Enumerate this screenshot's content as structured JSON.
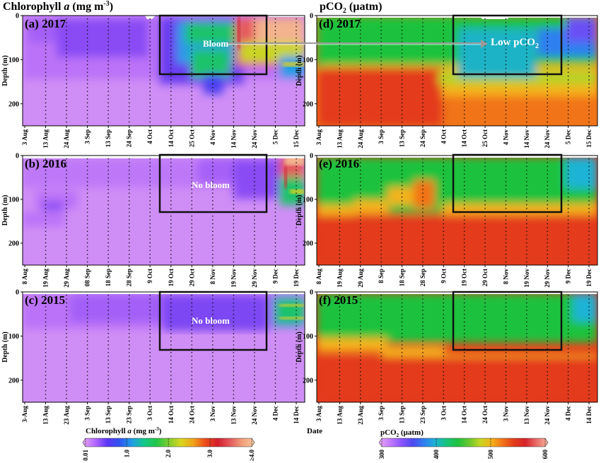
{
  "header": {
    "left_title": "Chlorophyll a (mg m-3)",
    "left_title_main": "Chlorophyll ",
    "left_title_italic": "a",
    "left_title_unit": " (mg m",
    "left_title_sup": "-3",
    "left_title_close": ")",
    "right_title_main": "pCO",
    "right_title_sub": "2",
    "right_title_unit": " (µatm)"
  },
  "axis": {
    "ylabel": "Depth (m)",
    "xlabel": "Date",
    "yticks": [
      "0",
      "100",
      "200"
    ]
  },
  "panels": [
    {
      "id": "a",
      "label": "(a) 2017",
      "variable": "chlorophyll",
      "year": 2017,
      "xticks": [
        "3 Aug",
        "13 Aug",
        "24 Aug",
        "3 Sep",
        "13 Sep",
        "24 Sep",
        "4 Oct",
        "14 Oct",
        "25 Oct",
        "4 Nov",
        "14 Nov",
        "24 Nov",
        "5 Dec",
        "15 Dec"
      ],
      "box_text": "Bloom"
    },
    {
      "id": "d",
      "label": "(d) 2017",
      "variable": "pCO2",
      "year": 2017,
      "xticks": [
        "3 Aug",
        "13 Aug",
        "24 Aug",
        "3 Sep",
        "13 Sep",
        "24 Sep",
        "4 Oct",
        "14 Oct",
        "25 Oct",
        "4 Nov",
        "14 Nov",
        "24 Nov",
        "5 Dec",
        "15 Dec"
      ],
      "box_text_main": "Low pCO",
      "box_text_sub": "2"
    },
    {
      "id": "b",
      "label": "(b) 2016",
      "variable": "chlorophyll",
      "year": 2016,
      "xticks": [
        "8 Aug",
        "19 Aug",
        "29 Aug",
        "08 Sep",
        "18 Sep",
        "28 Sep",
        "9 Oct",
        "19 Oct",
        "29 Oct",
        "8 Nov",
        "19 Nov",
        "29 Nov",
        "9 Dec",
        "19 Dec"
      ],
      "box_text": "No bloom"
    },
    {
      "id": "e",
      "label": "(e) 2016",
      "variable": "pCO2",
      "year": 2016,
      "xticks": [
        "8 Aug",
        "19 Aug",
        "29 Aug",
        "8 Sep",
        "18 Sep",
        "28 Sep",
        "9 Oct",
        "19 Oct",
        "29 Oct",
        "8 Nov",
        "19 Nov",
        "29 Nov",
        "9 Dec",
        "19 Dec"
      ],
      "box_text": ""
    },
    {
      "id": "c",
      "label": "(c) 2015",
      "variable": "chlorophyll",
      "year": 2015,
      "xticks": [
        "3-Aug",
        "13 Aug",
        "23 Aug",
        "3 Sep",
        "13 Sep",
        "23 Sep",
        "3 Oct",
        "14 Oct",
        "24 Oct",
        "3 Nov",
        "13 Nov",
        "24 Nov",
        "4 Dec",
        "14 Dec"
      ],
      "box_text": "No bloom"
    },
    {
      "id": "f",
      "label": "(f) 2015",
      "variable": "pCO2",
      "year": 2015,
      "xticks": [
        "3 Aug",
        "13 Aug",
        "23 Aug",
        "3 Sep",
        "13 Sep",
        "23 Sep",
        "3 Oct",
        "14 Oct",
        "24 Oct",
        "3 Nov",
        "13 Nov",
        "24 Nov",
        "4 Dec",
        "14 Dec"
      ],
      "box_text": ""
    }
  ],
  "colorbars": {
    "chl": {
      "title_main": "Chlorophyll ",
      "title_italic": "a",
      "title_unit": " (mg m",
      "title_sup": "-3",
      "title_close": ")",
      "ticks": [
        "0.01",
        "1.0",
        "2.0",
        "3.0",
        "≥4.0"
      ],
      "min": 0.01,
      "max": 4.0,
      "colors": [
        "#e7a7f2",
        "#b469ff",
        "#5d35f5",
        "#2f55f0",
        "#1f9ce8",
        "#13c98a",
        "#22c54a",
        "#7ccf2f",
        "#d8d61f",
        "#f0a419",
        "#ee4a1a",
        "#d41f2d",
        "#e55a5d",
        "#f1a07a",
        "#f7c9a1"
      ]
    },
    "pco2": {
      "title_main": "pCO",
      "title_sub": "2",
      "title_unit": " (µatm)",
      "ticks": [
        "300",
        "400",
        "500",
        "600"
      ],
      "min": 300,
      "max": 600,
      "colors": [
        "#e7a7f2",
        "#c37bff",
        "#8b53ff",
        "#4f49f0",
        "#2f7ff0",
        "#1db3d6",
        "#17c47a",
        "#1fc23e",
        "#67c72f",
        "#c8d623",
        "#f4b21a",
        "#f27219",
        "#e33b1c",
        "#d6232b",
        "#ea6f6b",
        "#f4b49a"
      ]
    }
  },
  "annotations": {
    "arrow_from": "a",
    "arrow_to": "d"
  },
  "chart_data": [
    {
      "type": "heatmap",
      "title": "(a) 2017",
      "zlabel": "Chlorophyll a (mg m-3)",
      "ylabel": "Depth (m)",
      "ylim": [
        250,
        0
      ],
      "x": [
        "3 Aug",
        "13 Aug",
        "24 Aug",
        "3 Sep",
        "13 Sep",
        "24 Sep",
        "4 Oct",
        "14 Oct",
        "25 Oct",
        "4 Nov",
        "14 Nov",
        "24 Nov",
        "5 Dec",
        "15 Dec"
      ],
      "annotation": "Bloom"
    },
    {
      "type": "heatmap",
      "title": "(b) 2016",
      "zlabel": "Chlorophyll a (mg m-3)",
      "ylabel": "Depth (m)",
      "ylim": [
        250,
        0
      ],
      "x": [
        "8 Aug",
        "19 Aug",
        "29 Aug",
        "08 Sep",
        "18 Sep",
        "28 Sep",
        "9 Oct",
        "19 Oct",
        "29 Oct",
        "8 Nov",
        "19 Nov",
        "29 Nov",
        "9 Dec",
        "19 Dec"
      ],
      "annotation": "No bloom"
    },
    {
      "type": "heatmap",
      "title": "(c) 2015",
      "zlabel": "Chlorophyll a (mg m-3)",
      "ylabel": "Depth (m)",
      "ylim": [
        250,
        0
      ],
      "x": [
        "3-Aug",
        "13 Aug",
        "23 Aug",
        "3 Sep",
        "13 Sep",
        "23 Sep",
        "3 Oct",
        "14 Oct",
        "24 Oct",
        "3 Nov",
        "13 Nov",
        "24 Nov",
        "4 Dec",
        "14 Dec"
      ],
      "annotation": "No bloom"
    },
    {
      "type": "heatmap",
      "title": "(d) 2017",
      "zlabel": "pCO2 (µatm)",
      "ylabel": "Depth (m)",
      "ylim": [
        250,
        0
      ],
      "x": [
        "3 Aug",
        "13 Aug",
        "24 Aug",
        "3 Sep",
        "13 Sep",
        "24 Sep",
        "4 Oct",
        "14 Oct",
        "25 Oct",
        "4 Nov",
        "14 Nov",
        "24 Nov",
        "5 Dec",
        "15 Dec"
      ],
      "annotation": "Low pCO2"
    },
    {
      "type": "heatmap",
      "title": "(e) 2016",
      "zlabel": "pCO2 (µatm)",
      "ylabel": "Depth (m)",
      "ylim": [
        250,
        0
      ],
      "x": [
        "8 Aug",
        "19 Aug",
        "29 Aug",
        "8 Sep",
        "18 Sep",
        "28 Sep",
        "9 Oct",
        "19 Oct",
        "29 Oct",
        "8 Nov",
        "19 Nov",
        "29 Nov",
        "9 Dec",
        "19 Dec"
      ]
    },
    {
      "type": "heatmap",
      "title": "(f) 2015",
      "zlabel": "pCO2 (µatm)",
      "ylabel": "Depth (m)",
      "ylim": [
        250,
        0
      ],
      "x": [
        "3 Aug",
        "13 Aug",
        "23 Aug",
        "3 Sep",
        "13 Sep",
        "23 Sep",
        "3 Oct",
        "14 Oct",
        "24 Oct",
        "3 Nov",
        "13 Nov",
        "24 Nov",
        "4 Dec",
        "14 Dec"
      ]
    }
  ]
}
